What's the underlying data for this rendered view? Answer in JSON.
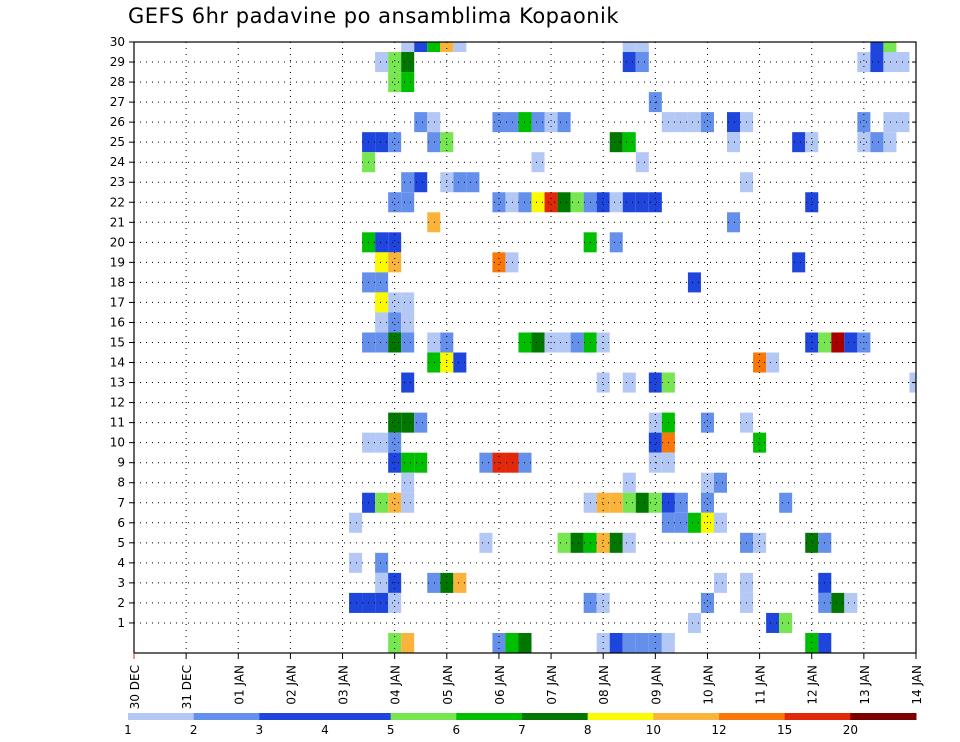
{
  "chart_data": {
    "type": "heatmap",
    "title": "GEFS 6hr padavine po ansamblima Kopaonik",
    "x_ticks": [
      "30 DEC",
      "31 DEC",
      "01 JAN",
      "02 JAN",
      "03 JAN",
      "04 JAN",
      "05 JAN",
      "06 JAN",
      "07 JAN",
      "08 JAN",
      "09 JAN",
      "10 JAN",
      "11 JAN",
      "12 JAN",
      "13 JAN",
      "14 JAN"
    ],
    "y_ticks": [
      1,
      2,
      3,
      4,
      5,
      6,
      7,
      8,
      9,
      10,
      11,
      12,
      13,
      14,
      15,
      16,
      17,
      18,
      19,
      20,
      21,
      22,
      23,
      24,
      25,
      26,
      27,
      28,
      29,
      30
    ],
    "x_range_steps": [
      0,
      60
    ],
    "y_range": [
      0,
      30
    ],
    "grid": true,
    "legend": {
      "placement": "bottom",
      "labels": [
        "1",
        "2",
        "3",
        "4",
        "5",
        "6",
        "7",
        "8",
        "10",
        "12",
        "15",
        "20"
      ],
      "colors": [
        "#b4c8f5",
        "#6490ec",
        "#1e46dc",
        "#1e46dc",
        "#78e650",
        "#00be00",
        "#007800",
        "#fafa00",
        "#fab43c",
        "#fa780a",
        "#e1280a",
        "#7d0000"
      ]
    },
    "value_colors": [
      "#b4c8f5",
      "#6490ec",
      "#1e46dc",
      "#78e650",
      "#00be00",
      "#007800",
      "#fafa00",
      "#fab43c",
      "#fa780a",
      "#e1280a",
      "#aa0000",
      "#7d0000"
    ],
    "cells": [
      [
        30,
        21,
        1
      ],
      [
        30,
        22,
        3
      ],
      [
        30,
        23,
        5
      ],
      [
        30,
        24,
        8
      ],
      [
        30,
        25,
        1
      ],
      [
        30,
        38,
        1
      ],
      [
        30,
        39,
        1
      ],
      [
        30,
        57,
        3
      ],
      [
        30,
        58,
        4
      ],
      [
        29,
        19,
        1
      ],
      [
        29,
        20,
        4
      ],
      [
        29,
        21,
        6
      ],
      [
        29,
        38,
        3
      ],
      [
        29,
        39,
        2
      ],
      [
        29,
        56,
        1
      ],
      [
        29,
        57,
        3
      ],
      [
        29,
        58,
        1
      ],
      [
        29,
        59,
        1
      ],
      [
        28,
        20,
        4
      ],
      [
        28,
        21,
        5
      ],
      [
        27,
        40,
        2
      ],
      [
        26,
        22,
        2
      ],
      [
        26,
        23,
        1
      ],
      [
        26,
        28,
        2
      ],
      [
        26,
        29,
        2
      ],
      [
        26,
        30,
        5
      ],
      [
        26,
        31,
        2
      ],
      [
        26,
        32,
        1
      ],
      [
        26,
        33,
        2
      ],
      [
        26,
        41,
        1
      ],
      [
        26,
        42,
        1
      ],
      [
        26,
        43,
        1
      ],
      [
        26,
        44,
        2
      ],
      [
        26,
        46,
        3
      ],
      [
        26,
        47,
        1
      ],
      [
        26,
        56,
        2
      ],
      [
        26,
        58,
        1
      ],
      [
        26,
        59,
        1
      ],
      [
        25,
        18,
        3
      ],
      [
        25,
        19,
        3
      ],
      [
        25,
        20,
        2
      ],
      [
        25,
        23,
        2
      ],
      [
        25,
        24,
        4
      ],
      [
        25,
        37,
        6
      ],
      [
        25,
        38,
        5
      ],
      [
        25,
        46,
        1
      ],
      [
        25,
        51,
        3
      ],
      [
        25,
        52,
        1
      ],
      [
        25,
        56,
        1
      ],
      [
        25,
        57,
        2
      ],
      [
        25,
        58,
        1
      ],
      [
        24,
        18,
        4
      ],
      [
        24,
        31,
        1
      ],
      [
        24,
        39,
        1
      ],
      [
        23,
        21,
        2
      ],
      [
        23,
        22,
        3
      ],
      [
        23,
        24,
        1
      ],
      [
        23,
        25,
        2
      ],
      [
        23,
        26,
        2
      ],
      [
        23,
        47,
        1
      ],
      [
        22,
        20,
        2
      ],
      [
        22,
        21,
        2
      ],
      [
        22,
        28,
        2
      ],
      [
        22,
        29,
        1
      ],
      [
        22,
        30,
        2
      ],
      [
        22,
        31,
        7
      ],
      [
        22,
        32,
        10
      ],
      [
        22,
        33,
        6
      ],
      [
        22,
        34,
        4
      ],
      [
        22,
        35,
        2
      ],
      [
        22,
        36,
        3
      ],
      [
        22,
        37,
        1
      ],
      [
        22,
        38,
        3
      ],
      [
        22,
        39,
        3
      ],
      [
        22,
        40,
        3
      ],
      [
        22,
        52,
        3
      ],
      [
        21,
        23,
        8
      ],
      [
        21,
        46,
        2
      ],
      [
        20,
        18,
        5
      ],
      [
        20,
        19,
        3
      ],
      [
        20,
        20,
        3
      ],
      [
        20,
        35,
        5
      ],
      [
        20,
        37,
        2
      ],
      [
        19,
        19,
        7
      ],
      [
        19,
        20,
        8
      ],
      [
        19,
        28,
        9
      ],
      [
        19,
        29,
        1
      ],
      [
        19,
        51,
        3
      ],
      [
        18,
        18,
        2
      ],
      [
        18,
        19,
        2
      ],
      [
        18,
        43,
        3
      ],
      [
        17,
        19,
        7
      ],
      [
        17,
        20,
        1
      ],
      [
        17,
        21,
        1
      ],
      [
        16,
        19,
        1
      ],
      [
        16,
        20,
        2
      ],
      [
        16,
        21,
        1
      ],
      [
        15,
        18,
        2
      ],
      [
        15,
        19,
        2
      ],
      [
        15,
        20,
        6
      ],
      [
        15,
        21,
        2
      ],
      [
        15,
        23,
        1
      ],
      [
        15,
        24,
        2
      ],
      [
        15,
        30,
        5
      ],
      [
        15,
        31,
        6
      ],
      [
        15,
        32,
        1
      ],
      [
        15,
        33,
        1
      ],
      [
        15,
        34,
        2
      ],
      [
        15,
        35,
        5
      ],
      [
        15,
        36,
        1
      ],
      [
        15,
        52,
        3
      ],
      [
        15,
        53,
        4
      ],
      [
        15,
        54,
        11
      ],
      [
        15,
        55,
        3
      ],
      [
        15,
        56,
        2
      ],
      [
        14,
        23,
        5
      ],
      [
        14,
        24,
        7
      ],
      [
        14,
        25,
        3
      ],
      [
        14,
        48,
        9
      ],
      [
        14,
        49,
        1
      ],
      [
        13,
        21,
        3
      ],
      [
        13,
        36,
        1
      ],
      [
        13,
        38,
        1
      ],
      [
        13,
        40,
        3
      ],
      [
        13,
        41,
        4
      ],
      [
        13,
        60,
        1
      ],
      [
        11,
        20,
        6
      ],
      [
        11,
        21,
        6
      ],
      [
        11,
        22,
        2
      ],
      [
        11,
        40,
        1
      ],
      [
        11,
        41,
        5
      ],
      [
        11,
        44,
        2
      ],
      [
        11,
        47,
        1
      ],
      [
        10,
        18,
        1
      ],
      [
        10,
        19,
        1
      ],
      [
        10,
        20,
        2
      ],
      [
        10,
        40,
        3
      ],
      [
        10,
        41,
        9
      ],
      [
        10,
        48,
        5
      ],
      [
        9,
        20,
        3
      ],
      [
        9,
        21,
        5
      ],
      [
        9,
        22,
        5
      ],
      [
        9,
        27,
        2
      ],
      [
        9,
        28,
        10
      ],
      [
        9,
        29,
        10
      ],
      [
        9,
        30,
        2
      ],
      [
        9,
        40,
        1
      ],
      [
        9,
        41,
        1
      ],
      [
        8,
        21,
        1
      ],
      [
        8,
        38,
        1
      ],
      [
        8,
        44,
        1
      ],
      [
        8,
        45,
        2
      ],
      [
        7,
        18,
        3
      ],
      [
        7,
        19,
        4
      ],
      [
        7,
        20,
        8
      ],
      [
        7,
        21,
        1
      ],
      [
        7,
        35,
        1
      ],
      [
        7,
        36,
        8
      ],
      [
        7,
        37,
        8
      ],
      [
        7,
        38,
        4
      ],
      [
        7,
        39,
        6
      ],
      [
        7,
        40,
        4
      ],
      [
        7,
        41,
        3
      ],
      [
        7,
        42,
        2
      ],
      [
        7,
        44,
        2
      ],
      [
        7,
        50,
        2
      ],
      [
        6,
        17,
        1
      ],
      [
        6,
        41,
        2
      ],
      [
        6,
        42,
        2
      ],
      [
        6,
        43,
        5
      ],
      [
        6,
        44,
        7
      ],
      [
        6,
        45,
        1
      ],
      [
        5,
        27,
        1
      ],
      [
        5,
        33,
        4
      ],
      [
        5,
        34,
        6
      ],
      [
        5,
        35,
        5
      ],
      [
        5,
        36,
        8
      ],
      [
        5,
        37,
        6
      ],
      [
        5,
        38,
        1
      ],
      [
        5,
        47,
        2
      ],
      [
        5,
        48,
        1
      ],
      [
        5,
        52,
        6
      ],
      [
        5,
        53,
        2
      ],
      [
        4,
        17,
        1
      ],
      [
        4,
        19,
        2
      ],
      [
        3,
        19,
        1
      ],
      [
        3,
        20,
        3
      ],
      [
        3,
        23,
        2
      ],
      [
        3,
        24,
        6
      ],
      [
        3,
        25,
        8
      ],
      [
        3,
        45,
        1
      ],
      [
        3,
        47,
        1
      ],
      [
        3,
        53,
        3
      ],
      [
        2,
        17,
        3
      ],
      [
        2,
        18,
        3
      ],
      [
        2,
        19,
        3
      ],
      [
        2,
        20,
        1
      ],
      [
        2,
        35,
        2
      ],
      [
        2,
        36,
        1
      ],
      [
        2,
        44,
        2
      ],
      [
        2,
        47,
        1
      ],
      [
        2,
        53,
        2
      ],
      [
        2,
        54,
        6
      ],
      [
        2,
        55,
        1
      ],
      [
        1,
        43,
        1
      ],
      [
        1,
        49,
        3
      ],
      [
        1,
        50,
        4
      ],
      [
        0,
        20,
        4
      ],
      [
        0,
        21,
        8
      ],
      [
        0,
        28,
        2
      ],
      [
        0,
        29,
        5
      ],
      [
        0,
        30,
        6
      ],
      [
        0,
        36,
        1
      ],
      [
        0,
        37,
        3
      ],
      [
        0,
        38,
        2
      ],
      [
        0,
        39,
        2
      ],
      [
        0,
        40,
        2
      ],
      [
        0,
        41,
        1
      ],
      [
        0,
        52,
        5
      ],
      [
        0,
        53,
        3
      ]
    ]
  }
}
